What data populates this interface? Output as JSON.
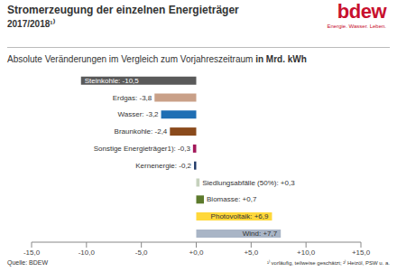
{
  "chart_data": {
    "type": "bar",
    "orientation": "horizontal",
    "title": "Stromerzeugung der einzelnen Energieträger",
    "subtitle": "2017/2018¹⁾",
    "xlabel": [
      "Absolute Veränderungen im Vergleich zum Vorjahreszeitraum",
      "in Mrd. kWh"
    ],
    "annotations": [
      "bdew",
      "Energie. Wasser. Leben.",
      "Quelle: BDEW",
      "¹⁾ vorläufig, teilweise geschätzt; ²⁾ Heizöl, PSW u. a."
    ],
    "categories": [
      "Steinkohle",
      "Erdgas",
      "Wasser",
      "Braunkohle",
      "Sonstige Energieträger1)",
      "Kernenergie",
      "Siedlungsabfälle (50%)",
      "Biomasse",
      "Photovoltaik",
      "Wind"
    ],
    "values": [
      -10.5,
      -3.8,
      -3.2,
      -2.4,
      -0.3,
      -0.2,
      0.3,
      0.7,
      6.9,
      7.7
    ],
    "value_labels": [
      "Steinkohle: -10,5",
      "Erdgas: -3,8",
      "Wasser: -3,2",
      "Braunkohle: -2,4",
      "Sonstige Energieträger1): -0,3",
      "Kernenergie: -0,2",
      "Siedlungsabfälle (50%): +0,3",
      "Biomasse: +0,7",
      "Photovoltaik: +6,9",
      "Wind: +7,7"
    ],
    "colors": [
      "#5a5a5a",
      "#c9a088",
      "#1f6fb4",
      "#8a4a1c",
      "#a3185a",
      "#1f3868",
      "#c5d1bd",
      "#5c7a2c",
      "#ffd83a",
      "#a9b5c6"
    ],
    "xlim": [
      -15,
      15
    ],
    "xticks": [
      {
        "value": -15,
        "label": "-15,0"
      },
      {
        "value": -10,
        "label": "-10,0"
      },
      {
        "value": -5,
        "label": "-5,0"
      },
      {
        "value": 0,
        "label": "+0,0"
      },
      {
        "value": 5,
        "label": "+5,0"
      },
      {
        "value": 10,
        "label": "+10,0"
      },
      {
        "value": 15,
        "label": "+15,0"
      }
    ],
    "grid": false,
    "data_labels": true,
    "tick_labels": "x"
  }
}
